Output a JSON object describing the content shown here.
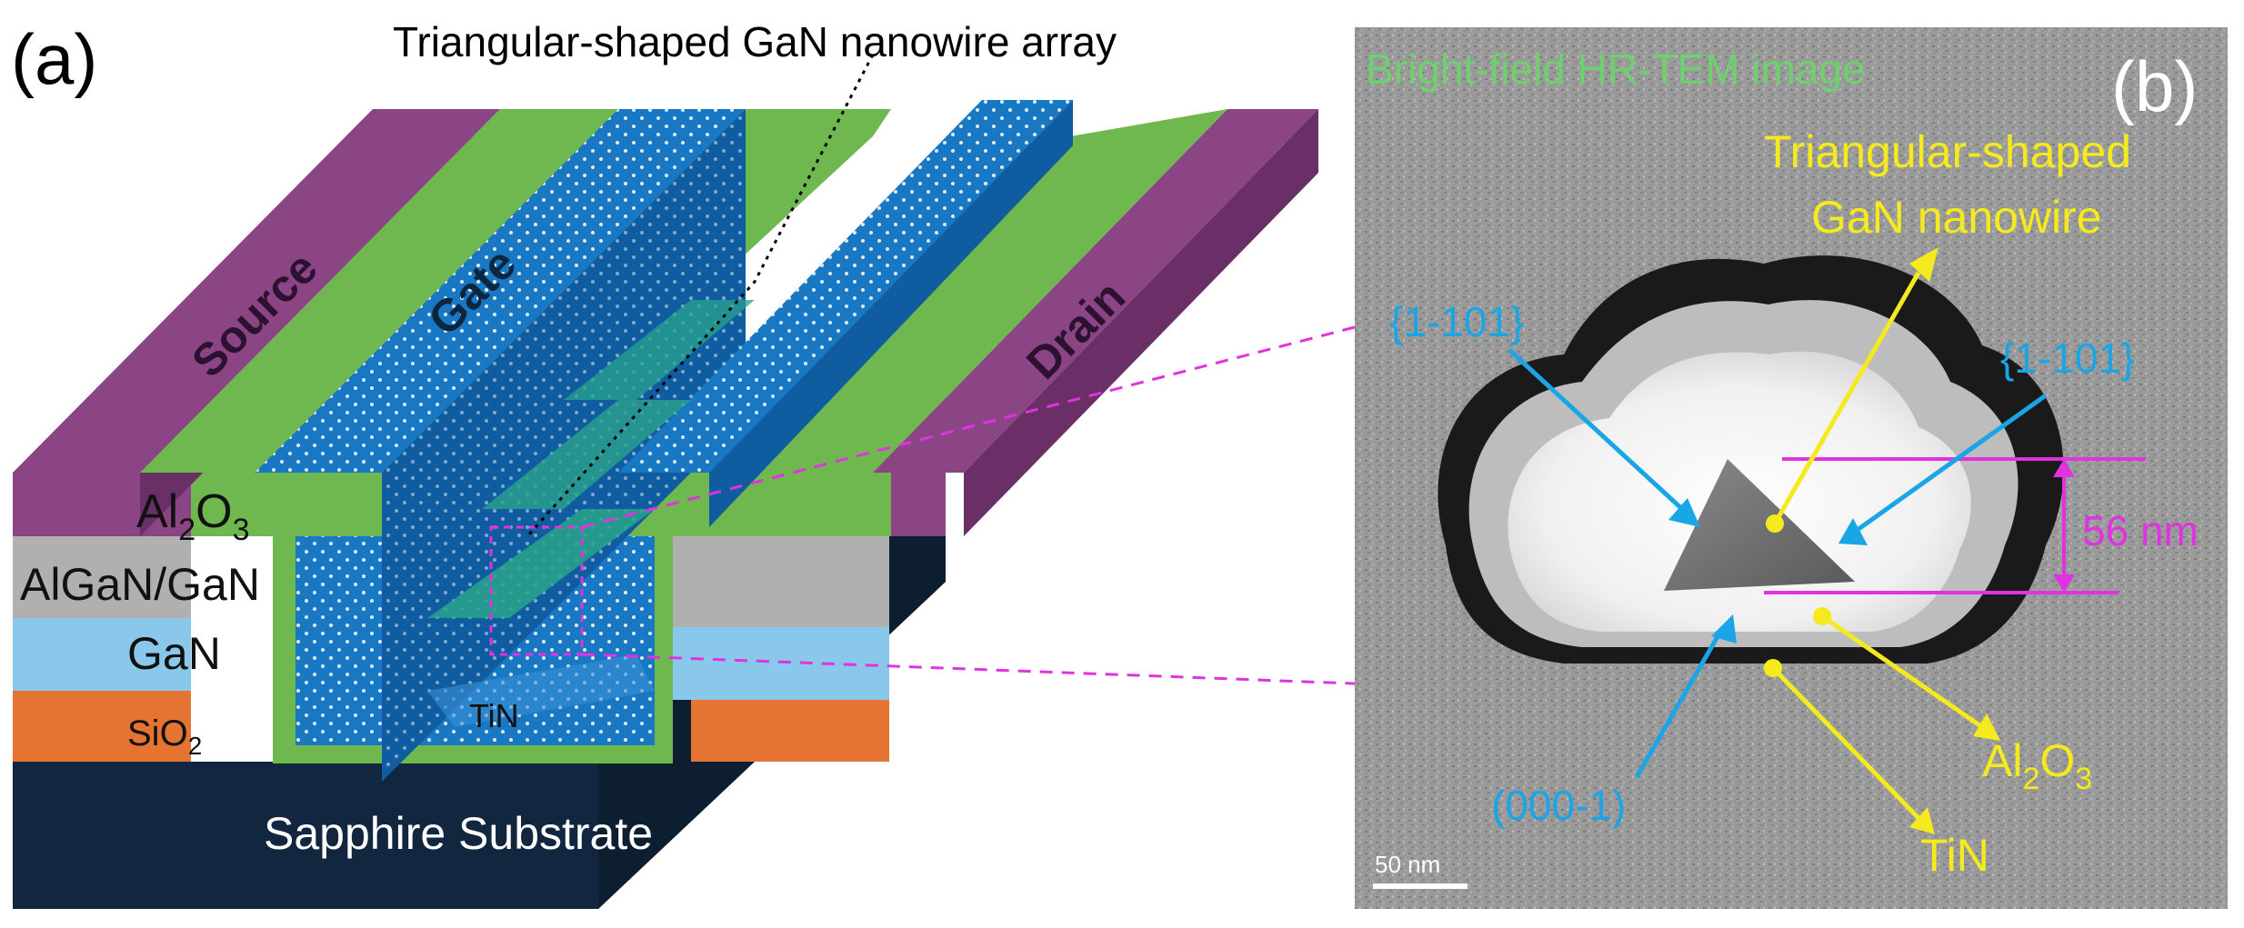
{
  "panel_a": {
    "label": "(a)",
    "title": "Triangular-shaped GaN nanowire array",
    "contacts": {
      "source": "Source",
      "gate": "Gate",
      "drain": "Drain"
    },
    "layers": {
      "al2o3": {
        "main": "Al",
        "sub1": "2",
        "mid": "O",
        "sub2": "3"
      },
      "algan_gan": "AlGaN/GaN",
      "gan": "GaN",
      "sio2": {
        "main": "SiO",
        "sub": "2"
      },
      "tin": "TiN",
      "substrate": "Sapphire Substrate"
    },
    "colors": {
      "contact_purple": "#8b4585",
      "oxide_green": "#6fb84f",
      "gate_blue": "#1878c4",
      "algan_gray": "#b0b0b0",
      "gan_light_blue": "#89c8ea",
      "sio2_orange": "#e57331",
      "substrate_navy": "#12273f"
    }
  },
  "panel_b": {
    "label": "(b)",
    "title": "Bright-field HR-TEM image",
    "nanowire_label_line1": "Triangular-shaped",
    "nanowire_label_line2": "GaN nanowire",
    "facet_left": "{1-101}",
    "facet_right": "{1-101}",
    "facet_bottom": "(000-1)",
    "height": "56 nm",
    "oxide": {
      "main": "Al",
      "sub1": "2",
      "mid": "O",
      "sub2": "3"
    },
    "tin": "TiN",
    "scale_bar": "50 nm",
    "colors": {
      "yellow": "#f4ea1d",
      "cyan": "#1aa6e6",
      "magenta": "#e033e0",
      "title_green": "#6fd06f"
    }
  }
}
